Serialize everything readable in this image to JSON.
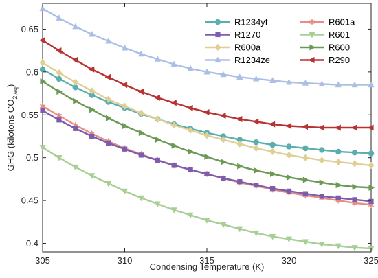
{
  "chart_data": {
    "type": "line",
    "xlabel": "Condensing Temperature (K)",
    "ylabel_main": "GHG (kilotons CO",
    "ylabel_sub": "2,eq",
    "ylabel_end": ")",
    "xlim": [
      305,
      325
    ],
    "ylim": [
      0.39,
      0.68
    ],
    "xticks": [
      305,
      310,
      315,
      320,
      325
    ],
    "yticks": [
      0.4,
      0.45,
      0.5,
      0.55,
      0.6,
      0.65
    ],
    "ytick_labels": [
      "0.4",
      "0.45",
      "0.5",
      "0.55",
      "0.6",
      "0.65"
    ],
    "grid": false,
    "legend_position": "top-right",
    "legend_columns": 2,
    "x": [
      305,
      306,
      307,
      308,
      309,
      310,
      311,
      312,
      313,
      314,
      315,
      316,
      317,
      318,
      319,
      320,
      321,
      322,
      323,
      324,
      325
    ],
    "series": [
      {
        "name": "R1234yf",
        "color": "#5aaeb0",
        "marker": "circle",
        "values": [
          0.603,
          0.592,
          0.582,
          0.573,
          0.565,
          0.558,
          0.551,
          0.545,
          0.539,
          0.534,
          0.529,
          0.525,
          0.521,
          0.518,
          0.515,
          0.513,
          0.511,
          0.509,
          0.507,
          0.506,
          0.505
        ]
      },
      {
        "name": "R601a",
        "color": "#e48e86",
        "marker": "star",
        "values": [
          0.56,
          0.549,
          0.538,
          0.528,
          0.519,
          0.511,
          0.504,
          0.497,
          0.491,
          0.486,
          0.481,
          0.476,
          0.471,
          0.467,
          0.463,
          0.459,
          0.456,
          0.453,
          0.45,
          0.447,
          0.445
        ]
      },
      {
        "name": "R1270",
        "color": "#7e5bab",
        "marker": "square",
        "values": [
          0.555,
          0.544,
          0.534,
          0.525,
          0.517,
          0.51,
          0.503,
          0.497,
          0.491,
          0.486,
          0.481,
          0.476,
          0.472,
          0.468,
          0.464,
          0.461,
          0.458,
          0.455,
          0.453,
          0.451,
          0.449
        ]
      },
      {
        "name": "R601",
        "color": "#a7cf95",
        "marker": "triangle-down",
        "values": [
          0.512,
          0.5,
          0.489,
          0.479,
          0.47,
          0.461,
          0.453,
          0.446,
          0.439,
          0.433,
          0.427,
          0.422,
          0.417,
          0.412,
          0.408,
          0.405,
          0.402,
          0.399,
          0.397,
          0.395,
          0.394
        ]
      },
      {
        "name": "R600a",
        "color": "#e0cf94",
        "marker": "diamond",
        "values": [
          0.611,
          0.599,
          0.588,
          0.578,
          0.568,
          0.56,
          0.552,
          0.545,
          0.538,
          0.532,
          0.526,
          0.521,
          0.516,
          0.511,
          0.507,
          0.503,
          0.5,
          0.497,
          0.495,
          0.493,
          0.491
        ]
      },
      {
        "name": "R600",
        "color": "#6c9a56",
        "marker": "triangle-right",
        "values": [
          0.589,
          0.577,
          0.566,
          0.556,
          0.546,
          0.537,
          0.529,
          0.521,
          0.514,
          0.507,
          0.501,
          0.495,
          0.49,
          0.485,
          0.481,
          0.477,
          0.474,
          0.471,
          0.468,
          0.466,
          0.465
        ]
      },
      {
        "name": "R1234ze",
        "color": "#abbfe4",
        "marker": "triangle-up",
        "values": [
          0.674,
          0.663,
          0.653,
          0.644,
          0.636,
          0.628,
          0.621,
          0.615,
          0.609,
          0.604,
          0.6,
          0.597,
          0.594,
          0.592,
          0.59,
          0.588,
          0.587,
          0.586,
          0.585,
          0.585,
          0.585
        ]
      },
      {
        "name": "R290",
        "color": "#b83232",
        "marker": "triangle-left",
        "values": [
          0.637,
          0.625,
          0.614,
          0.603,
          0.594,
          0.585,
          0.577,
          0.57,
          0.564,
          0.558,
          0.553,
          0.549,
          0.545,
          0.542,
          0.539,
          0.537,
          0.536,
          0.535,
          0.535,
          0.535,
          0.535
        ]
      }
    ]
  }
}
